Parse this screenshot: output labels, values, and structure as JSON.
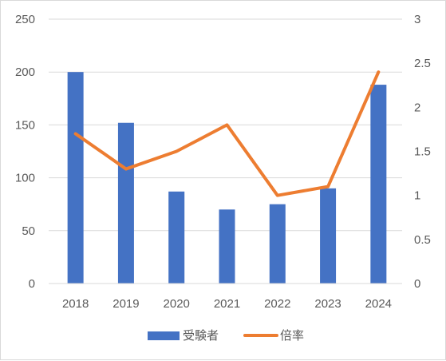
{
  "chart_data": {
    "type": "bar",
    "categories": [
      "2018",
      "2019",
      "2020",
      "2021",
      "2022",
      "2023",
      "2024"
    ],
    "series": [
      {
        "name": "受験者",
        "type": "bar",
        "axis": "left",
        "color": "#4472C4",
        "values": [
          200,
          152,
          87,
          70,
          75,
          90,
          188
        ]
      },
      {
        "name": "倍率",
        "type": "line",
        "axis": "right",
        "color": "#ED7D31",
        "values": [
          1.7,
          1.3,
          1.5,
          1.8,
          1.0,
          1.1,
          2.4
        ]
      }
    ],
    "y_left": {
      "ylim": [
        0,
        250
      ],
      "ticks": [
        "0",
        "50",
        "100",
        "150",
        "200",
        "250"
      ]
    },
    "y_right": {
      "ylim": [
        0,
        3
      ],
      "ticks": [
        "0",
        "0.5",
        "1",
        "1.5",
        "2",
        "2.5",
        "3"
      ]
    },
    "grid": true,
    "legend_position": "bottom",
    "title": "",
    "xlabel": "",
    "ylabel": ""
  }
}
